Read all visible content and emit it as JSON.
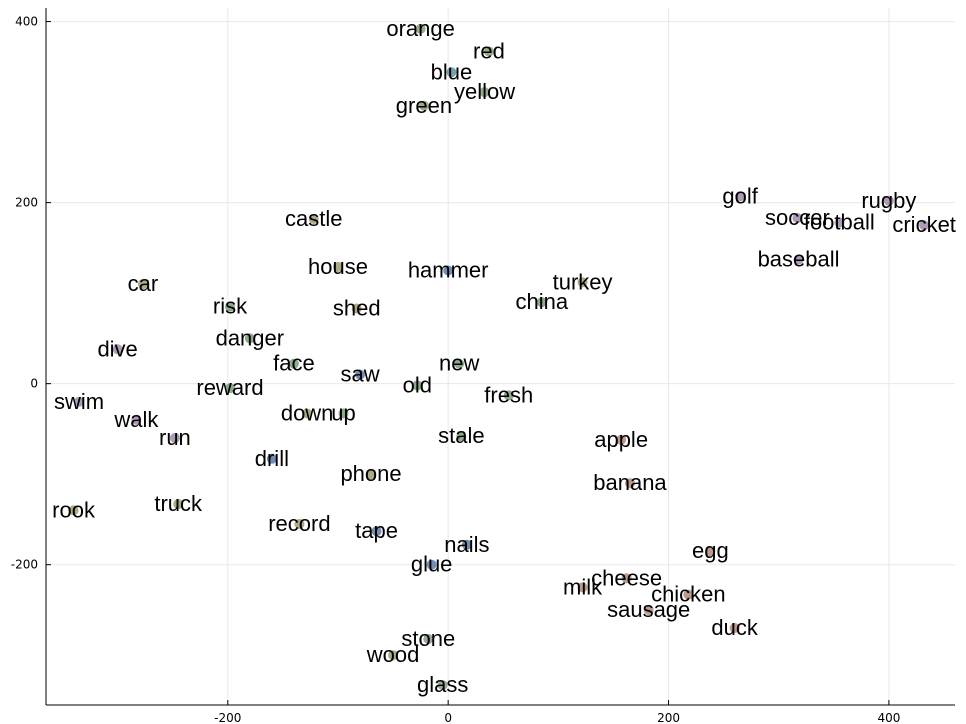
{
  "chart_data": {
    "type": "scatter",
    "title": "",
    "xlabel": "",
    "ylabel": "",
    "xlim": [
      -365,
      460
    ],
    "ylim": [
      -355,
      415
    ],
    "grid": true,
    "legend": "none",
    "x_ticks": [
      -200,
      0,
      200,
      400
    ],
    "y_ticks": [
      -200,
      0,
      200,
      400
    ],
    "x_tick_labels": [
      "-200",
      "0",
      "200",
      "400"
    ],
    "y_tick_labels": [
      "-200",
      "0",
      "200",
      "400"
    ],
    "points": [
      {
        "label": "orange",
        "x": -25,
        "y": 392,
        "color": "#8a9a78"
      },
      {
        "label": "red",
        "x": 37,
        "y": 367,
        "color": "#8a9a78"
      },
      {
        "label": "blue",
        "x": 3,
        "y": 344,
        "color": "#5a90a0"
      },
      {
        "label": "yellow",
        "x": 33,
        "y": 322,
        "color": "#8a9a78"
      },
      {
        "label": "green",
        "x": -22,
        "y": 307,
        "color": "#8a9a78"
      },
      {
        "label": "golf",
        "x": 265,
        "y": 207,
        "color": "#a08aa8"
      },
      {
        "label": "soccer",
        "x": 317,
        "y": 183,
        "color": "#a08aa8"
      },
      {
        "label": "rugby",
        "x": 400,
        "y": 202,
        "color": "#a08aa8"
      },
      {
        "label": "football",
        "x": 355,
        "y": 178,
        "color": "#a08aa8"
      },
      {
        "label": "cricket",
        "x": 432,
        "y": 175,
        "color": "#a08aa8"
      },
      {
        "label": "baseball",
        "x": 318,
        "y": 137,
        "color": "#a08aa8"
      },
      {
        "label": "castle",
        "x": -122,
        "y": 182,
        "color": "#a09a72"
      },
      {
        "label": "house",
        "x": -100,
        "y": 129,
        "color": "#a09a72"
      },
      {
        "label": "hammer",
        "x": 0,
        "y": 125,
        "color": "#5a7aa8"
      },
      {
        "label": "turkey",
        "x": 122,
        "y": 112,
        "color": "#a09a72"
      },
      {
        "label": "car",
        "x": -277,
        "y": 110,
        "color": "#a09a72"
      },
      {
        "label": "china",
        "x": 85,
        "y": 90,
        "color": "#7a9a78"
      },
      {
        "label": "risk",
        "x": -198,
        "y": 85,
        "color": "#7a9a78"
      },
      {
        "label": "shed",
        "x": -83,
        "y": 83,
        "color": "#a09a72"
      },
      {
        "label": "danger",
        "x": -180,
        "y": 50,
        "color": "#7a9a78"
      },
      {
        "label": "dive",
        "x": -300,
        "y": 38,
        "color": "#a08aa8"
      },
      {
        "label": "face",
        "x": -140,
        "y": 22,
        "color": "#7a9a78"
      },
      {
        "label": "new",
        "x": 10,
        "y": 22,
        "color": "#7a9a78"
      },
      {
        "label": "saw",
        "x": -80,
        "y": 10,
        "color": "#5a7aa8"
      },
      {
        "label": "reward",
        "x": -198,
        "y": -5,
        "color": "#7a9a78"
      },
      {
        "label": "old",
        "x": -28,
        "y": -2,
        "color": "#7a9a78"
      },
      {
        "label": "fresh",
        "x": 55,
        "y": -13,
        "color": "#7a9a78"
      },
      {
        "label": "swim",
        "x": -335,
        "y": -20,
        "color": "#a08aa8"
      },
      {
        "label": "down",
        "x": -128,
        "y": -33,
        "color": "#a09a72"
      },
      {
        "label": "up",
        "x": -95,
        "y": -33,
        "color": "#7a9a78"
      },
      {
        "label": "walk",
        "x": -283,
        "y": -40,
        "color": "#a08aa8"
      },
      {
        "label": "stale",
        "x": 12,
        "y": -58,
        "color": "#7a9a78"
      },
      {
        "label": "run",
        "x": -248,
        "y": -60,
        "color": "#a08aa8"
      },
      {
        "label": "apple",
        "x": 157,
        "y": -62,
        "color": "#b08a7a"
      },
      {
        "label": "drill",
        "x": -160,
        "y": -83,
        "color": "#5a7aa8"
      },
      {
        "label": "phone",
        "x": -70,
        "y": -100,
        "color": "#a09a72"
      },
      {
        "label": "banana",
        "x": 165,
        "y": -110,
        "color": "#b08a7a"
      },
      {
        "label": "rook",
        "x": -340,
        "y": -140,
        "color": "#a09a72"
      },
      {
        "label": "truck",
        "x": -245,
        "y": -133,
        "color": "#a09a72"
      },
      {
        "label": "record",
        "x": -135,
        "y": -155,
        "color": "#a09a72"
      },
      {
        "label": "tape",
        "x": -65,
        "y": -163,
        "color": "#5a7aa8"
      },
      {
        "label": "nails",
        "x": 17,
        "y": -178,
        "color": "#5a7aa8"
      },
      {
        "label": "egg",
        "x": 238,
        "y": -185,
        "color": "#b08a7a"
      },
      {
        "label": "glue",
        "x": -15,
        "y": -200,
        "color": "#5a7aa8"
      },
      {
        "label": "cheese",
        "x": 162,
        "y": -215,
        "color": "#b08a7a"
      },
      {
        "label": "milk",
        "x": 122,
        "y": -225,
        "color": "#b08a7a"
      },
      {
        "label": "chicken",
        "x": 218,
        "y": -233,
        "color": "#b08a7a"
      },
      {
        "label": "sausage",
        "x": 182,
        "y": -250,
        "color": "#b08a7a"
      },
      {
        "label": "duck",
        "x": 260,
        "y": -270,
        "color": "#b08a7a"
      },
      {
        "label": "stone",
        "x": -18,
        "y": -282,
        "color": "#8a9a88"
      },
      {
        "label": "wood",
        "x": -50,
        "y": -300,
        "color": "#a09a72"
      },
      {
        "label": "glass",
        "x": -5,
        "y": -333,
        "color": "#8a9a88"
      }
    ]
  }
}
